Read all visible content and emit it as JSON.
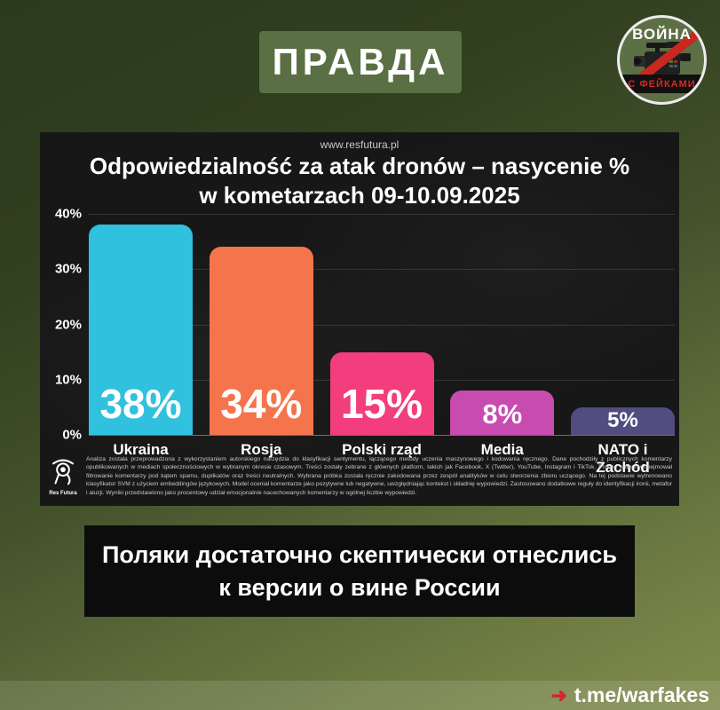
{
  "header": {
    "badge_label": "ПРАВДА",
    "badge_color": "#5a7044"
  },
  "logo": {
    "top_text": "ВОЙНА",
    "bottom_text": "С ФЕЙКАМИ",
    "stripe_color": "#c8281f"
  },
  "chart": {
    "source_url": "www.resfutura.pl",
    "title": "Odpowiedzialność za atak dronów – nasycenie % w kometarzach 09-10.09.2025"
  },
  "chart_data": {
    "type": "bar",
    "title": "Odpowiedzialność za atak dronów – nasycenie % w kometarzach 09-10.09.2025",
    "categories": [
      "Ukraina",
      "Rosja",
      "Polski rząd",
      "Media",
      "NATO i Zachód"
    ],
    "values": [
      38,
      34,
      15,
      8,
      5
    ],
    "value_labels": [
      "38%",
      "34%",
      "15%",
      "8%",
      "5%"
    ],
    "bar_colors": [
      "#30c1de",
      "#f5744c",
      "#f23e7d",
      "#c84bb0",
      "#514d80"
    ],
    "xlabel": "",
    "ylabel": "",
    "ylim": [
      0,
      40
    ],
    "yticks": [
      "40%",
      "30%",
      "20%",
      "10%",
      "0%"
    ],
    "grid": true,
    "legend": false
  },
  "disclaimer": {
    "brand": "Res Futura",
    "text": "Analiza została przeprowadzona z wykorzystaniem autorskiego narzędzia do klasyfikacji sentymentu, łączącego metody uczenia maszynowego i kodowania ręcznego. Dane pochodziły z publicznych komentarzy opublikowanych w mediach społecznościowych w wybranym okresie czasowym. Treści zostały zebrane z głównych platform, takich jak Facebook, X (Twitter), YouTube, Instagram i TikTok. Proces wstępny obejmował filtrowanie komentarzy pod kątem spamu, duplikatów oraz treści neutralnych. Wybrana próbka została ręcznie zakodowana przez zespół analityków w celu stworzenia zbioru uczącego. Na tej podstawie wytrenowano klasyfikator SVM z użyciem embeddingów językowych. Model oceniał komentarze jako pozytywne lub negatywne, uwzględniając kontekst i składnię wypowiedzi. Zastosowano dodatkowe reguły do identyfikacji ironii, metafor i aluzji. Wyniki przedstawiono jako procentowy udział emocjonalnie nacechowanych komentarzy w ogólnej liczbie wypowiedzi."
  },
  "quote": {
    "text": "Поляки достаточно скептически отнеслись к версии о вине России"
  },
  "footer": {
    "arrow": "➜",
    "link": "t.me/warfakes"
  }
}
